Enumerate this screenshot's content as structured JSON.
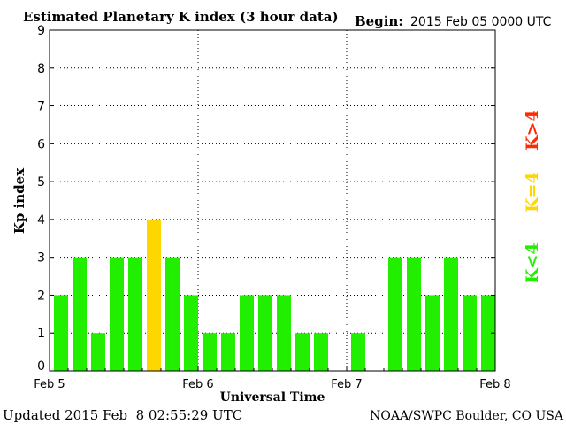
{
  "chart_data": {
    "type": "bar",
    "title": "Estimated Planetary K index (3 hour data)",
    "begin_label": "Begin:",
    "begin_value": "2015 Feb 05 0000 UTC",
    "xlabel": "Universal Time",
    "ylabel": "Kp index",
    "ylim": [
      0,
      9
    ],
    "yticks": [
      "0",
      "1",
      "2",
      "3",
      "4",
      "5",
      "6",
      "7",
      "8",
      "9"
    ],
    "xticks": [
      "Feb 5",
      "Feb 6",
      "Feb 7",
      "Feb 8"
    ],
    "interval_hours": 3,
    "values": [
      2,
      3,
      1,
      3,
      3,
      4,
      3,
      2,
      1,
      1,
      2,
      2,
      2,
      1,
      1,
      0,
      1,
      0,
      3,
      3,
      2,
      3,
      2,
      2
    ],
    "grid": true,
    "legend": [
      {
        "label": "K<4",
        "color": "#22ee00"
      },
      {
        "label": "K=4",
        "color": "#ffd700"
      },
      {
        "label": "K>4",
        "color": "#ff2a00"
      }
    ],
    "colors": {
      "low": "#22ee00",
      "moderate": "#ffd700",
      "high": "#ff2a00"
    }
  },
  "footer": {
    "updated": "Updated 2015 Feb  8 02:55:29 UTC",
    "source": "NOAA/SWPC Boulder, CO USA"
  }
}
